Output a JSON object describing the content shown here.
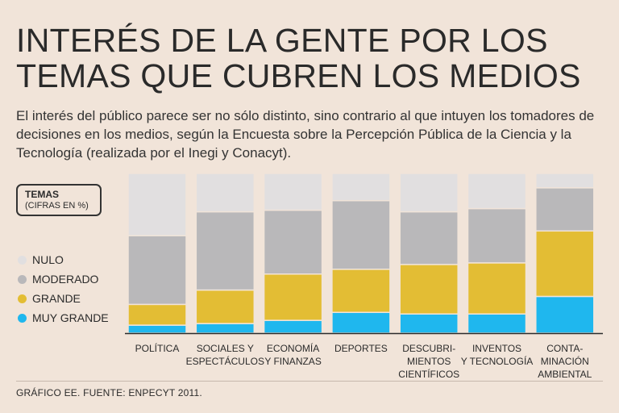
{
  "title_line1": "INTERÉS DE LA GENTE POR LOS",
  "title_line2": "TEMAS QUE CUBREN LOS MEDIOS",
  "subtitle": "El interés del público parece ser no sólo distinto, sino contrario al que intuyen los tomadores de decisiones en los medios, según la Encuesta sobre la Percepción Pública de la Ciencia y la Tecnología (realizada por el Inegi y Conacyt).",
  "legend": {
    "title": "TEMAS",
    "subtitle": "(CIFRAS EN %)",
    "items": [
      {
        "label": "NULO",
        "color": "#e1dfe0"
      },
      {
        "label": "MODERADO",
        "color": "#b9b8ba"
      },
      {
        "label": "GRANDE",
        "color": "#e3bd34"
      },
      {
        "label": "MUY GRANDE",
        "color": "#1fb7ee"
      }
    ]
  },
  "chart_data": {
    "type": "bar",
    "stacked": true,
    "percent_total": 100,
    "categories": [
      [
        "POLÍTICA"
      ],
      [
        "SOCIALES Y",
        "ESPECTÁCULOS"
      ],
      [
        "ECONOMÍA",
        "Y FINANZAS"
      ],
      [
        "DEPORTES"
      ],
      [
        "DESCUBRI-",
        "MIENTOS",
        "CIENTÍFICOS"
      ],
      [
        "INVENTOS",
        "Y TECNOLOGÍA"
      ],
      [
        "CONTA-",
        "MINACIÓN",
        "AMBIENTAL"
      ]
    ],
    "series": [
      {
        "name": "MUY GRANDE",
        "color": "#1fb7ee",
        "values": [
          5,
          6,
          8,
          13,
          12,
          12,
          23
        ]
      },
      {
        "name": "GRANDE",
        "color": "#e3bd34",
        "values": [
          13,
          21,
          29,
          27,
          31,
          32,
          41
        ]
      },
      {
        "name": "MODERADO",
        "color": "#b9b8ba",
        "values": [
          43,
          49,
          40,
          43,
          33,
          34,
          27
        ]
      },
      {
        "name": "NULO",
        "color": "#e1dfe0",
        "values": [
          39,
          24,
          23,
          17,
          24,
          22,
          9
        ]
      }
    ]
  },
  "footer": "GRÁFICO EE. FUENTE: ENPECYT 2011."
}
